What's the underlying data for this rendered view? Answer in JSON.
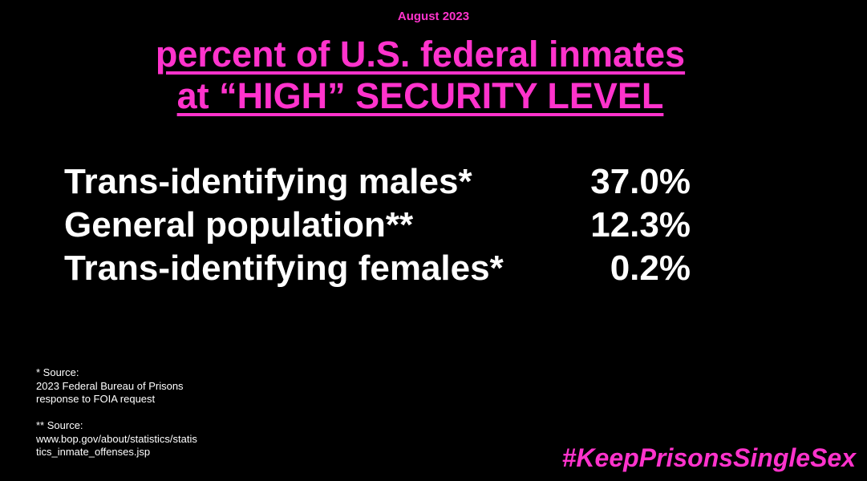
{
  "date": "August 2023",
  "title": {
    "line1": "percent of U.S. federal inmates",
    "line2": "at “HIGH” SECURITY LEVEL"
  },
  "rows": [
    {
      "label": "Trans-identifying males*",
      "value": "37.0%"
    },
    {
      "label": "General population**",
      "value": "12.3%"
    },
    {
      "label": "Trans-identifying females*",
      "value": "0.2%"
    }
  ],
  "footnotes": {
    "f1": [
      "* Source:",
      "2023 Federal Bureau of Prisons",
      "response to FOIA request"
    ],
    "f2": [
      "** Source:",
      "www.bop.gov/about/statistics/statis",
      "tics_inmate_offenses.jsp"
    ]
  },
  "hashtag": "#KeepPrisonsSingleSex",
  "colors": {
    "accent": "#ff33cc",
    "text": "#ffffff",
    "background": "#000000"
  }
}
